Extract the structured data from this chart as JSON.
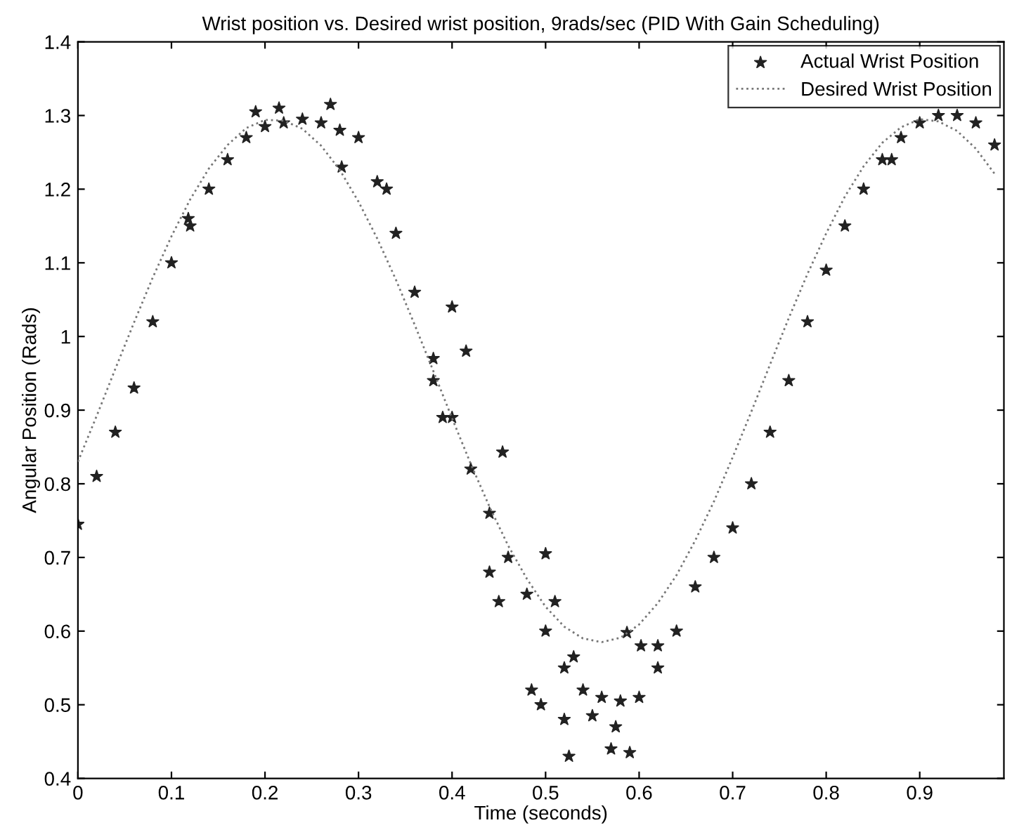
{
  "chart_data": {
    "type": "line",
    "title": "Wrist position vs. Desired wrist position, 9rads/sec (PID With Gain Scheduling)",
    "xlabel": "Time (seconds)",
    "ylabel": "Angular Position (Rads)",
    "xlim": [
      0,
      0.99
    ],
    "xticks": [
      0,
      0.1,
      0.2,
      0.3,
      0.4,
      0.5,
      0.6,
      0.7,
      0.8,
      0.9
    ],
    "ylim": [
      0.4,
      1.4
    ],
    "yticks": [
      0.4,
      0.5,
      0.6,
      0.7,
      0.8,
      0.9,
      1,
      1.1,
      1.2,
      1.3,
      1.4
    ],
    "grid": false,
    "legend": "top right",
    "series": [
      {
        "name": "Actual Wrist Position",
        "type": "scatter",
        "marker": "star",
        "color": "#222222",
        "x": [
          0,
          0.02,
          0.04,
          0.06,
          0.08,
          0.1,
          0.12,
          0.14,
          0.16,
          0.18,
          0.2,
          0.22,
          0.24,
          0.26,
          0.28,
          0.3,
          0.32,
          0.34,
          0.36,
          0.38,
          0.4,
          0.42,
          0.44,
          0.46,
          0.48,
          0.5,
          0.52,
          0.54,
          0.56,
          0.58,
          0.6,
          0.62,
          0.64,
          0.66,
          0.68,
          0.7,
          0.72,
          0.74,
          0.76,
          0.78,
          0.8,
          0.82,
          0.84,
          0.86,
          0.88,
          0.9,
          0.92,
          0.94,
          0.96,
          0.98,
          0.39,
          0.454,
          0.44,
          0.45,
          0.5,
          0.51,
          0.485,
          0.495,
          0.52,
          0.525,
          0.57,
          0.59,
          0.575,
          0.55,
          0.587,
          0.602,
          0.62,
          0.53,
          0.4,
          0.415,
          0.38,
          0.33,
          0.27,
          0.215,
          0.19,
          0.282,
          0.118,
          0.87
        ],
        "values": [
          0.745,
          0.81,
          0.87,
          0.93,
          1.02,
          1.1,
          1.15,
          1.2,
          1.24,
          1.27,
          1.285,
          1.29,
          1.295,
          1.29,
          1.28,
          1.27,
          1.21,
          1.14,
          1.06,
          0.97,
          0.89,
          0.82,
          0.76,
          0.7,
          0.65,
          0.6,
          0.55,
          0.52,
          0.51,
          0.505,
          0.51,
          0.55,
          0.6,
          0.66,
          0.7,
          0.74,
          0.8,
          0.87,
          0.94,
          1.02,
          1.09,
          1.15,
          1.2,
          1.24,
          1.27,
          1.29,
          1.3,
          1.3,
          1.29,
          1.26,
          0.89,
          0.843,
          0.68,
          0.64,
          0.705,
          0.64,
          0.52,
          0.5,
          0.48,
          0.43,
          0.44,
          0.435,
          0.47,
          0.485,
          0.598,
          0.58,
          0.58,
          0.565,
          1.04,
          0.98,
          0.94,
          1.2,
          1.315,
          1.31,
          1.305,
          1.23,
          1.16,
          1.24
        ]
      },
      {
        "name": "Desired Wrist Position",
        "marker": "none",
        "line_style": "dotted",
        "color": "#777777",
        "x": [
          0,
          0.02,
          0.04,
          0.06,
          0.08,
          0.1,
          0.12,
          0.14,
          0.16,
          0.18,
          0.2,
          0.22,
          0.24,
          0.26,
          0.28,
          0.3,
          0.32,
          0.34,
          0.36,
          0.38,
          0.4,
          0.42,
          0.44,
          0.46,
          0.48,
          0.5,
          0.52,
          0.54,
          0.56,
          0.58,
          0.6,
          0.62,
          0.64,
          0.66,
          0.68,
          0.7,
          0.72,
          0.74,
          0.76,
          0.78,
          0.8,
          0.82,
          0.84,
          0.86,
          0.88,
          0.9,
          0.92,
          0.94,
          0.96,
          0.98
        ],
        "values": [
          0.83,
          0.892,
          0.956,
          1.019,
          1.08,
          1.136,
          1.186,
          1.228,
          1.26,
          1.283,
          1.294,
          1.293,
          1.282,
          1.259,
          1.226,
          1.183,
          1.133,
          1.077,
          1.016,
          0.953,
          0.889,
          0.827,
          0.769,
          0.716,
          0.671,
          0.633,
          0.606,
          0.59,
          0.585,
          0.591,
          0.609,
          0.638,
          0.676,
          0.723,
          0.776,
          0.836,
          0.898,
          0.962,
          1.025,
          1.085,
          1.14,
          1.19,
          1.231,
          1.263,
          1.284,
          1.295,
          1.292,
          1.279,
          1.255,
          1.221
        ]
      }
    ]
  }
}
